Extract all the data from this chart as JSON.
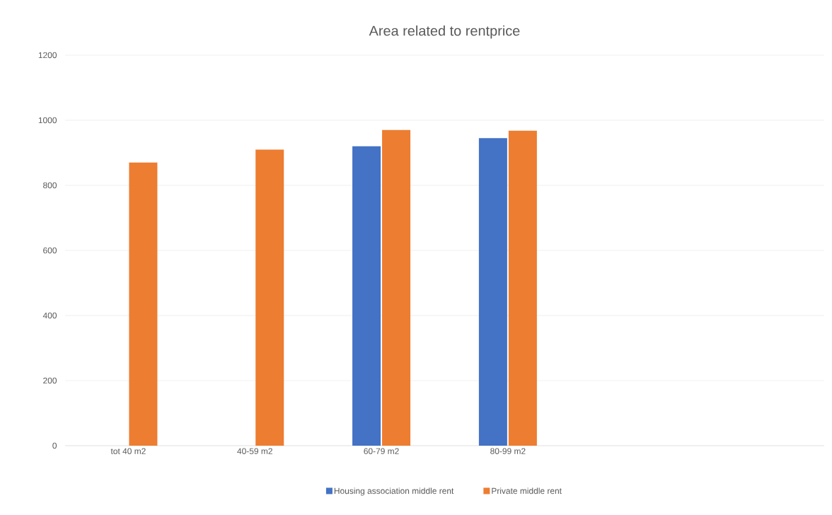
{
  "chart_data": {
    "type": "bar",
    "title": "Area related to rentprice",
    "categories": [
      "tot 40 m2",
      "40-59 m2",
      "60-79 m2",
      "80-99 m2",
      null,
      null
    ],
    "series": [
      {
        "name": "Housing association middle rent",
        "color": "#4472c4",
        "values": [
          null,
          null,
          920,
          945,
          null,
          null
        ]
      },
      {
        "name": "Private middle rent",
        "color": "#ed7d31",
        "values": [
          870,
          910,
          970,
          968,
          null,
          null
        ]
      }
    ],
    "ylim": [
      0,
      1200
    ],
    "yticks": [
      0,
      200,
      400,
      600,
      800,
      1000,
      1200
    ],
    "grid": "y",
    "legend": "bottom"
  }
}
